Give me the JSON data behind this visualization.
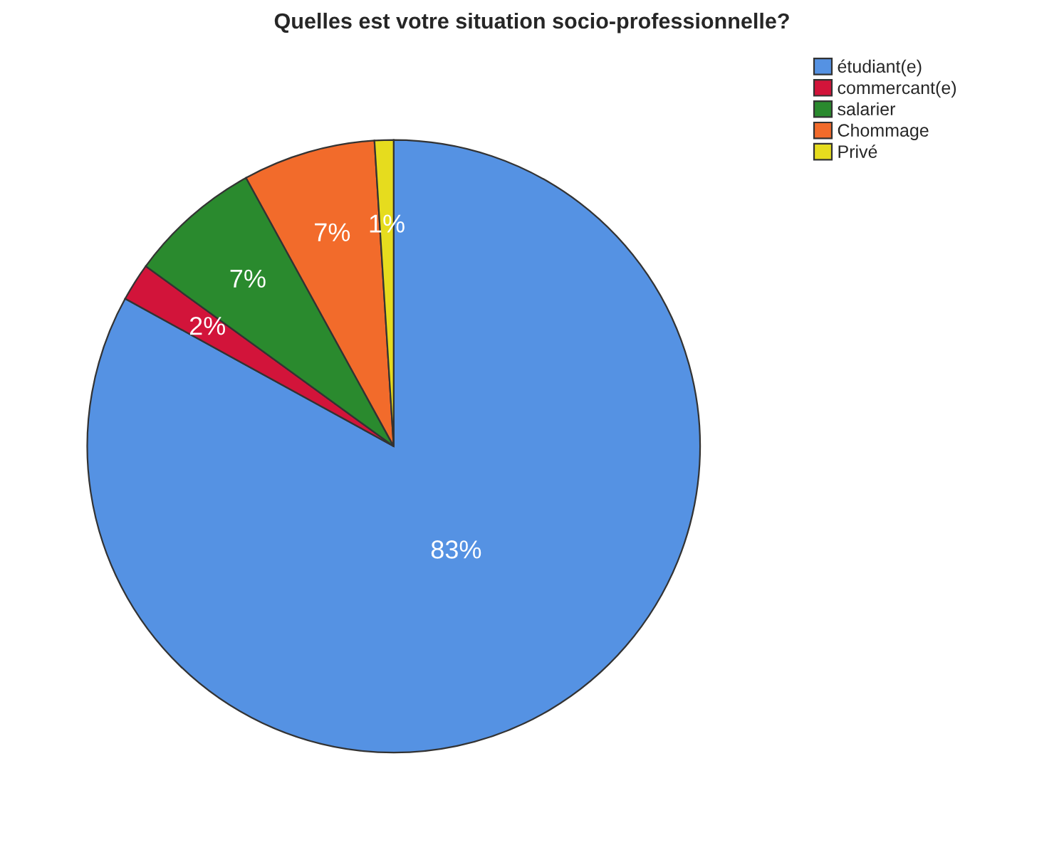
{
  "chart_data": {
    "type": "pie",
    "title": "Quelles est votre situation socio-professionnelle?",
    "categories": [
      "étudiant(e)",
      "commercant(e)",
      "salarier",
      "Chommage",
      "Privé"
    ],
    "values": [
      83,
      2,
      7,
      7,
      1
    ],
    "colors": [
      "#5592e3",
      "#d2143a",
      "#2a8a2e",
      "#f26b2b",
      "#e6dc1e"
    ],
    "value_labels": [
      "83%",
      "2%",
      "7%",
      "7%",
      "1%"
    ],
    "legend": "top right"
  }
}
